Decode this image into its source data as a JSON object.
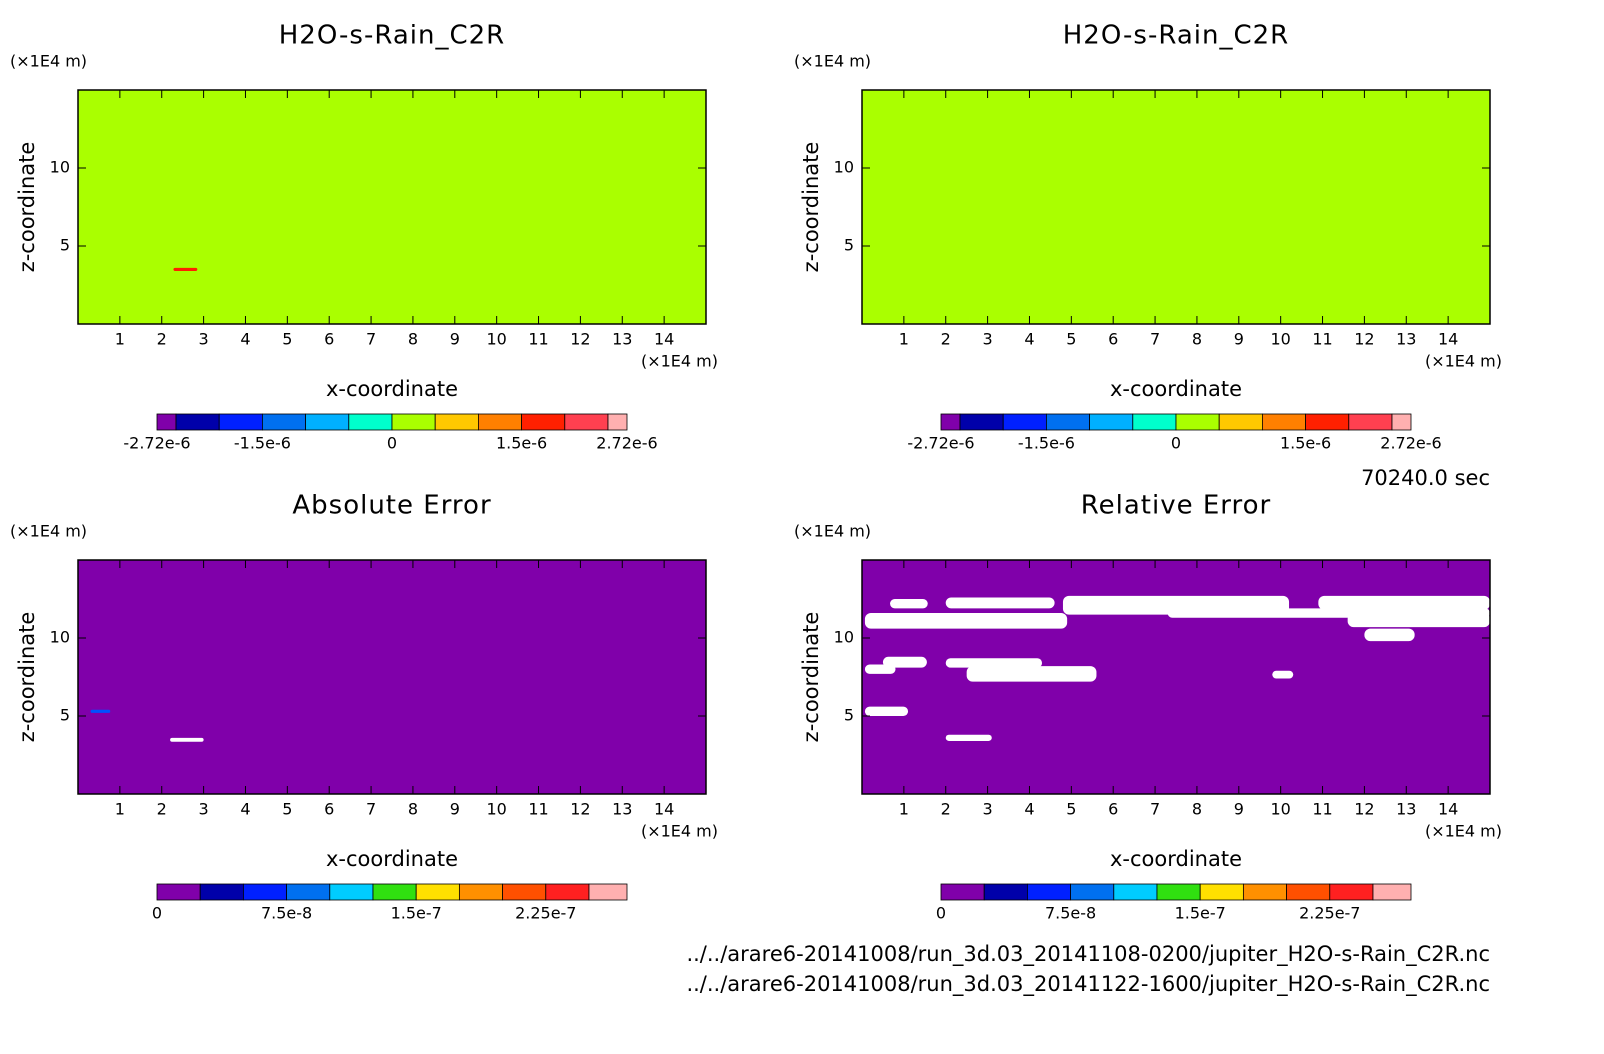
{
  "chart_data": [
    {
      "type": "contour",
      "title": "H2O-s-Rain_C2R",
      "x_label": "x-coordinate",
      "y_label": "z-coordinate",
      "x_unit": "(×1E4 m)",
      "y_unit": "(×1E4 m)",
      "xlim": [
        0,
        15
      ],
      "ylim": [
        0,
        15
      ],
      "xticks": [
        1,
        2,
        3,
        4,
        5,
        6,
        7,
        8,
        9,
        10,
        11,
        12,
        13,
        14
      ],
      "yticks": [
        5,
        10
      ],
      "fill_color": "#aaff00",
      "patches": [
        {
          "x": [
            2.28,
            2.85
          ],
          "z": [
            3.4,
            3.6
          ],
          "color": "#ff2000"
        }
      ],
      "colorbar": {
        "lim": [
          -2.72e-06,
          2.72e-06
        ],
        "levels": [
          -2.5e-06,
          -2e-06,
          -1.5e-06,
          -1e-06,
          -5e-07,
          0,
          5e-07,
          1e-06,
          1.5e-06,
          2e-06,
          2.5e-06
        ],
        "colors": [
          "#8000aa",
          "#0000aa",
          "#0020ff",
          "#0070f0",
          "#00b0ff",
          "#00ffcc",
          "#aaff00",
          "#ffc800",
          "#ff8000",
          "#ff2000",
          "#ff4050",
          "#ffb0b0"
        ],
        "ticks": [
          {
            "value": -2.72e-06,
            "label": "-2.72e-6"
          },
          {
            "value": -1.5e-06,
            "label": "-1.5e-6"
          },
          0,
          {
            "value": 1.5e-06,
            "label": "1.5e-6"
          },
          {
            "value": 2.72e-06,
            "label": "2.72e-6"
          }
        ]
      }
    },
    {
      "type": "contour",
      "title": "H2O-s-Rain_C2R",
      "x_label": "x-coordinate",
      "y_label": "z-coordinate",
      "x_unit": "(×1E4 m)",
      "y_unit": "(×1E4 m)",
      "xlim": [
        0,
        15
      ],
      "ylim": [
        0,
        15
      ],
      "xticks": [
        1,
        2,
        3,
        4,
        5,
        6,
        7,
        8,
        9,
        10,
        11,
        12,
        13,
        14
      ],
      "yticks": [
        5,
        10
      ],
      "fill_color": "#aaff00",
      "patches": [],
      "colorbar": {
        "lim": [
          -2.72e-06,
          2.72e-06
        ],
        "levels": [
          -2.5e-06,
          -2e-06,
          -1.5e-06,
          -1e-06,
          -5e-07,
          0,
          5e-07,
          1e-06,
          1.5e-06,
          2e-06,
          2.5e-06
        ],
        "colors": [
          "#8000aa",
          "#0000aa",
          "#0020ff",
          "#0070f0",
          "#00b0ff",
          "#00ffcc",
          "#aaff00",
          "#ffc800",
          "#ff8000",
          "#ff2000",
          "#ff4050",
          "#ffb0b0"
        ],
        "ticks": [
          {
            "value": -2.72e-06,
            "label": "-2.72e-6"
          },
          {
            "value": -1.5e-06,
            "label": "-1.5e-6"
          },
          0,
          {
            "value": 1.5e-06,
            "label": "1.5e-6"
          },
          {
            "value": 2.72e-06,
            "label": "2.72e-6"
          }
        ]
      }
    },
    {
      "type": "contour",
      "title": "Absolute Error",
      "x_label": "x-coordinate",
      "y_label": "z-coordinate",
      "x_unit": "(×1E4 m)",
      "y_unit": "(×1E4 m)",
      "xlim": [
        0,
        15
      ],
      "ylim": [
        0,
        15
      ],
      "xticks": [
        1,
        2,
        3,
        4,
        5,
        6,
        7,
        8,
        9,
        10,
        11,
        12,
        13,
        14
      ],
      "yticks": [
        5,
        10
      ],
      "fill_color": "#8000aa",
      "patches": [
        {
          "x": [
            2.2,
            3.0
          ],
          "z": [
            3.35,
            3.6
          ],
          "color": "#ffffff"
        },
        {
          "x": [
            0.3,
            0.77
          ],
          "z": [
            5.2,
            5.4
          ],
          "color": "#0050ff"
        }
      ],
      "colorbar": {
        "lim": [
          0,
          2.72e-07
        ],
        "levels": [
          2.5e-08,
          5e-08,
          7.5e-08,
          1e-07,
          1.25e-07,
          1.5e-07,
          1.75e-07,
          2e-07,
          2.25e-07,
          2.5e-07
        ],
        "colors": [
          "#8000aa",
          "#0000aa",
          "#0020ff",
          "#0070f0",
          "#00ccff",
          "#30e010",
          "#ffe000",
          "#ff9000",
          "#ff5000",
          "#ff2020",
          "#ffb0b0"
        ],
        "ticks": [
          0,
          {
            "value": 7.5e-08,
            "label": "7.5e-8"
          },
          {
            "value": 1.5e-07,
            "label": "1.5e-7"
          },
          {
            "value": 2.25e-07,
            "label": "2.25e-7"
          }
        ]
      }
    },
    {
      "type": "contour",
      "title": "Relative Error",
      "x_label": "x-coordinate",
      "y_label": "z-coordinate",
      "x_unit": "(×1E4 m)",
      "y_unit": "(×1E4 m)",
      "xlim": [
        0,
        15
      ],
      "ylim": [
        0,
        15
      ],
      "xticks": [
        1,
        2,
        3,
        4,
        5,
        6,
        7,
        8,
        9,
        10,
        11,
        12,
        13,
        14
      ],
      "yticks": [
        5,
        10
      ],
      "fill_color": "#8000aa",
      "patches": [
        {
          "x": [
            0.67,
            1.57
          ],
          "z": [
            11.9,
            12.5
          ],
          "color": "#ffffff"
        },
        {
          "x": [
            2.0,
            4.6
          ],
          "z": [
            11.9,
            12.6
          ],
          "color": "#ffffff"
        },
        {
          "x": [
            4.8,
            10.2
          ],
          "z": [
            11.5,
            12.7
          ],
          "color": "#ffffff"
        },
        {
          "x": [
            0.07,
            4.9
          ],
          "z": [
            10.6,
            11.6
          ],
          "color": "#ffffff"
        },
        {
          "x": [
            10.9,
            15
          ],
          "z": [
            11.8,
            12.7
          ],
          "color": "#ffffff"
        },
        {
          "x": [
            11.6,
            15
          ],
          "z": [
            10.7,
            11.6
          ],
          "color": "#ffffff"
        },
        {
          "x": [
            12.0,
            13.2
          ],
          "z": [
            9.8,
            10.6
          ],
          "color": "#ffffff"
        },
        {
          "x": [
            7.3,
            15
          ],
          "z": [
            11.3,
            11.9
          ],
          "color": "#ffffff"
        },
        {
          "x": [
            0.5,
            1.55
          ],
          "z": [
            8.1,
            8.8
          ],
          "color": "#ffffff"
        },
        {
          "x": [
            0.07,
            0.8
          ],
          "z": [
            7.7,
            8.3
          ],
          "color": "#ffffff"
        },
        {
          "x": [
            2.0,
            4.3
          ],
          "z": [
            8.1,
            8.7
          ],
          "color": "#ffffff"
        },
        {
          "x": [
            2.5,
            5.6
          ],
          "z": [
            7.2,
            8.2
          ],
          "color": "#ffffff"
        },
        {
          "x": [
            9.8,
            10.3
          ],
          "z": [
            7.4,
            7.9
          ],
          "color": "#ffffff"
        },
        {
          "x": [
            0.07,
            1.1
          ],
          "z": [
            5.0,
            5.6
          ],
          "color": "#ffffff"
        },
        {
          "x": [
            2.0,
            3.1
          ],
          "z": [
            3.4,
            3.8
          ],
          "color": "#ffffff"
        }
      ],
      "colorbar": {
        "lim": [
          0,
          2.72e-07
        ],
        "levels": [
          2.5e-08,
          5e-08,
          7.5e-08,
          1e-07,
          1.25e-07,
          1.5e-07,
          1.75e-07,
          2e-07,
          2.25e-07,
          2.5e-07
        ],
        "colors": [
          "#8000aa",
          "#0000aa",
          "#0020ff",
          "#0070f0",
          "#00ccff",
          "#30e010",
          "#ffe000",
          "#ff9000",
          "#ff5000",
          "#ff2020",
          "#ffb0b0"
        ],
        "ticks": [
          0,
          {
            "value": 7.5e-08,
            "label": "7.5e-8"
          },
          {
            "value": 1.5e-07,
            "label": "1.5e-7"
          },
          {
            "value": 2.25e-07,
            "label": "2.25e-7"
          }
        ]
      }
    }
  ],
  "footer": {
    "time": "70240.0 sec",
    "files": [
      "../../arare6-20141008/run_3d.03_20141108-0200/jupiter_H2O-s-Rain_C2R.nc",
      "../../arare6-20141008/run_3d.03_20141122-1600/jupiter_H2O-s-Rain_C2R.nc"
    ]
  }
}
